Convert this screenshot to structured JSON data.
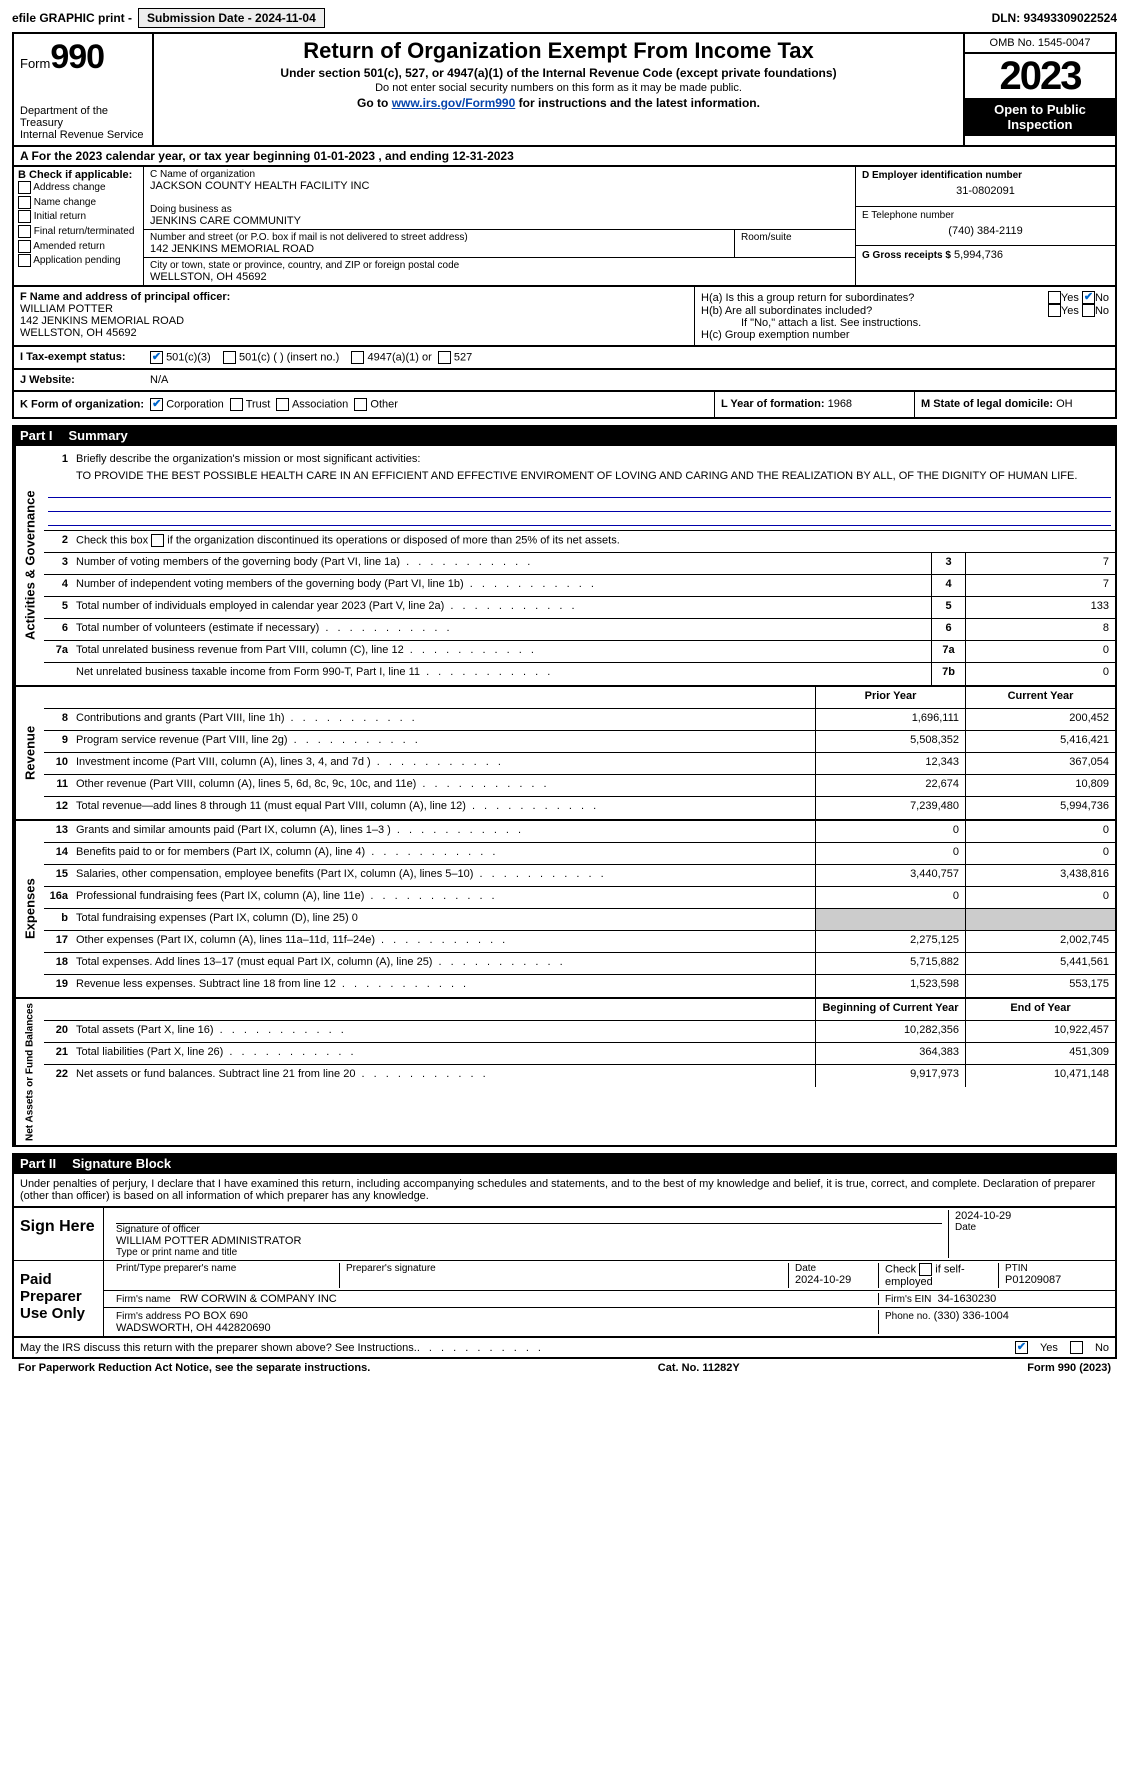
{
  "topbar": {
    "efile": "efile GRAPHIC print -",
    "subdate_label": "Submission Date - 2024-11-04",
    "dln": "DLN: 93493309022524"
  },
  "header": {
    "form_word": "Form",
    "form_num": "990",
    "dept": "Department of the Treasury\nInternal Revenue Service",
    "title": "Return of Organization Exempt From Income Tax",
    "sub1": "Under section 501(c), 527, or 4947(a)(1) of the Internal Revenue Code (except private foundations)",
    "sub2": "Do not enter social security numbers on this form as it may be made public.",
    "sub3_pre": "Go to ",
    "sub3_link": "www.irs.gov/Form990",
    "sub3_post": " for instructions and the latest information.",
    "omb": "OMB No. 1545-0047",
    "year": "2023",
    "open": "Open to Public Inspection"
  },
  "rowA": "A For the 2023 calendar year, or tax year beginning 01-01-2023   , and ending 12-31-2023",
  "colB": {
    "header": "B Check if applicable:",
    "opts": [
      "Address change",
      "Name change",
      "Initial return",
      "Final return/terminated",
      "Amended return",
      "Application pending"
    ]
  },
  "colC": {
    "name_label": "C Name of organization",
    "name": "JACKSON COUNTY HEALTH FACILITY INC",
    "dba_label": "Doing business as",
    "dba": "JENKINS CARE COMMUNITY",
    "street_label": "Number and street (or P.O. box if mail is not delivered to street address)",
    "room_label": "Room/suite",
    "street": "142 JENKINS MEMORIAL ROAD",
    "city_label": "City or town, state or province, country, and ZIP or foreign postal code",
    "city": "WELLSTON, OH  45692"
  },
  "colD": {
    "ein_label": "D Employer identification number",
    "ein": "31-0802091",
    "phone_label": "E Telephone number",
    "phone": "(740) 384-2119",
    "gross_label": "G Gross receipts $",
    "gross": "5,994,736"
  },
  "rowF": {
    "label": "F Name and address of principal officer:",
    "name": "WILLIAM POTTER",
    "addr1": "142 JENKINS MEMORIAL ROAD",
    "addr2": "WELLSTON, OH  45692"
  },
  "rowH": {
    "ha": "H(a)  Is this a group return for subordinates?",
    "hb": "H(b)  Are all subordinates included?",
    "hb_note": "If \"No,\" attach a list. See instructions.",
    "hc": "H(c)  Group exemption number",
    "yes": "Yes",
    "no": "No"
  },
  "rowI": {
    "label": "I   Tax-exempt status:",
    "o1": "501(c)(3)",
    "o2": "501(c) (  ) (insert no.)",
    "o3": "4947(a)(1) or",
    "o4": "527"
  },
  "rowJ": {
    "label": "J   Website:",
    "val": "N/A"
  },
  "rowK": {
    "label": "K Form of organization:",
    "opts": [
      "Corporation",
      "Trust",
      "Association",
      "Other"
    ]
  },
  "rowL": {
    "label": "L Year of formation:",
    "val": "1968"
  },
  "rowM": {
    "label": "M State of legal domicile:",
    "val": "OH"
  },
  "part1": {
    "label": "Part I",
    "title": "Summary"
  },
  "summary": {
    "side1": "Activities & Governance",
    "q1": "Briefly describe the organization's mission or most significant activities:",
    "mission": "TO PROVIDE THE BEST POSSIBLE HEALTH CARE IN AN EFFICIENT AND EFFECTIVE ENVIROMENT OF LOVING AND CARING AND THE REALIZATION BY ALL, OF THE DIGNITY OF HUMAN LIFE.",
    "q2": "Check this box      if the organization discontinued its operations or disposed of more than 25% of its net assets.",
    "rows_ag": [
      {
        "n": "3",
        "d": "Number of voting members of the governing body (Part VI, line 1a)",
        "box": "3",
        "v": "7"
      },
      {
        "n": "4",
        "d": "Number of independent voting members of the governing body (Part VI, line 1b)",
        "box": "4",
        "v": "7"
      },
      {
        "n": "5",
        "d": "Total number of individuals employed in calendar year 2023 (Part V, line 2a)",
        "box": "5",
        "v": "133"
      },
      {
        "n": "6",
        "d": "Total number of volunteers (estimate if necessary)",
        "box": "6",
        "v": "8"
      },
      {
        "n": "7a",
        "d": "Total unrelated business revenue from Part VIII, column (C), line 12",
        "box": "7a",
        "v": "0"
      },
      {
        "n": "",
        "d": "Net unrelated business taxable income from Form 990-T, Part I, line 11",
        "box": "7b",
        "v": "0"
      }
    ],
    "side2": "Revenue",
    "col_py": "Prior Year",
    "col_cy": "Current Year",
    "rows_rev": [
      {
        "n": "8",
        "d": "Contributions and grants (Part VIII, line 1h)",
        "py": "1,696,111",
        "cy": "200,452"
      },
      {
        "n": "9",
        "d": "Program service revenue (Part VIII, line 2g)",
        "py": "5,508,352",
        "cy": "5,416,421"
      },
      {
        "n": "10",
        "d": "Investment income (Part VIII, column (A), lines 3, 4, and 7d )",
        "py": "12,343",
        "cy": "367,054"
      },
      {
        "n": "11",
        "d": "Other revenue (Part VIII, column (A), lines 5, 6d, 8c, 9c, 10c, and 11e)",
        "py": "22,674",
        "cy": "10,809"
      },
      {
        "n": "12",
        "d": "Total revenue—add lines 8 through 11 (must equal Part VIII, column (A), line 12)",
        "py": "7,239,480",
        "cy": "5,994,736"
      }
    ],
    "side3": "Expenses",
    "rows_exp": [
      {
        "n": "13",
        "d": "Grants and similar amounts paid (Part IX, column (A), lines 1–3 )",
        "py": "0",
        "cy": "0"
      },
      {
        "n": "14",
        "d": "Benefits paid to or for members (Part IX, column (A), line 4)",
        "py": "0",
        "cy": "0"
      },
      {
        "n": "15",
        "d": "Salaries, other compensation, employee benefits (Part IX, column (A), lines 5–10)",
        "py": "3,440,757",
        "cy": "3,438,816"
      },
      {
        "n": "16a",
        "d": "Professional fundraising fees (Part IX, column (A), line 11e)",
        "py": "0",
        "cy": "0"
      },
      {
        "n": "b",
        "d": "Total fundraising expenses (Part IX, column (D), line 25) 0",
        "py": "",
        "cy": "",
        "shaded": true
      },
      {
        "n": "17",
        "d": "Other expenses (Part IX, column (A), lines 11a–11d, 11f–24e)",
        "py": "2,275,125",
        "cy": "2,002,745"
      },
      {
        "n": "18",
        "d": "Total expenses. Add lines 13–17 (must equal Part IX, column (A), line 25)",
        "py": "5,715,882",
        "cy": "5,441,561"
      },
      {
        "n": "19",
        "d": "Revenue less expenses. Subtract line 18 from line 12",
        "py": "1,523,598",
        "cy": "553,175"
      }
    ],
    "side4": "Net Assets or Fund Balances",
    "col_boy": "Beginning of Current Year",
    "col_eoy": "End of Year",
    "rows_na": [
      {
        "n": "20",
        "d": "Total assets (Part X, line 16)",
        "py": "10,282,356",
        "cy": "10,922,457"
      },
      {
        "n": "21",
        "d": "Total liabilities (Part X, line 26)",
        "py": "364,383",
        "cy": "451,309"
      },
      {
        "n": "22",
        "d": "Net assets or fund balances. Subtract line 21 from line 20",
        "py": "9,917,973",
        "cy": "10,471,148"
      }
    ]
  },
  "part2": {
    "label": "Part II",
    "title": "Signature Block"
  },
  "penalties": "Under penalties of perjury, I declare that I have examined this return, including accompanying schedules and statements, and to the best of my knowledge and belief, it is true, correct, and complete. Declaration of preparer (other than officer) is based on all information of which preparer has any knowledge.",
  "sign": {
    "here": "Sign Here",
    "sig_label": "Signature of officer",
    "officer": "WILLIAM POTTER  ADMINISTRATOR",
    "type_label": "Type or print name and title",
    "date_top": "2024-10-29",
    "date_label": "Date"
  },
  "paid": {
    "label": "Paid Preparer Use Only",
    "name_label": "Print/Type preparer's name",
    "sig_label": "Preparer's signature",
    "date_label": "Date",
    "date": "2024-10-29",
    "check_label": "Check         if self-employed",
    "ptin_label": "PTIN",
    "ptin": "P01209087",
    "firm_name_label": "Firm's name",
    "firm_name": "RW CORWIN & COMPANY INC",
    "firm_ein_label": "Firm's EIN",
    "firm_ein": "34-1630230",
    "firm_addr_label": "Firm's address",
    "firm_addr": "PO BOX 690\nWADSWORTH, OH  442820690",
    "phone_label": "Phone no.",
    "phone": "(330) 336-1004"
  },
  "discuss": "May the IRS discuss this return with the preparer shown above? See Instructions.",
  "footer": {
    "left": "For Paperwork Reduction Act Notice, see the separate instructions.",
    "mid": "Cat. No. 11282Y",
    "right": "Form 990 (2023)"
  }
}
